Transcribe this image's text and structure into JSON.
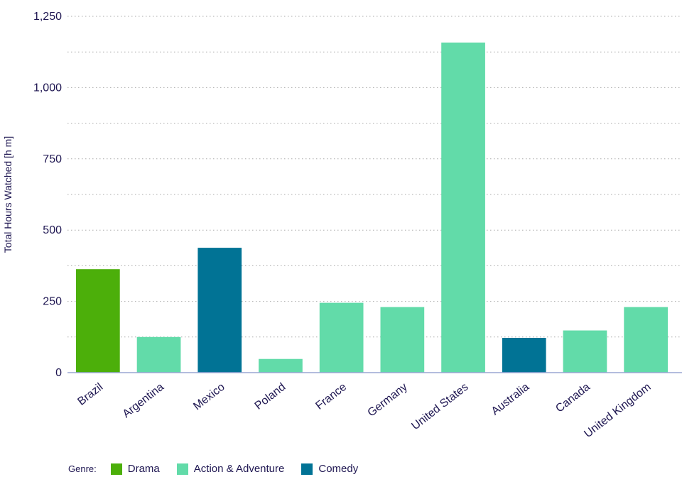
{
  "chart_data": {
    "type": "bar",
    "title": "",
    "ylabel": "Total Hours Watched [h m]",
    "xlabel": "",
    "ylim": [
      0,
      1250
    ],
    "yticks": [
      0,
      250,
      500,
      750,
      1000,
      1250
    ],
    "ytick_labels": [
      "0",
      "250",
      "500",
      "750",
      "1,000",
      "1,250"
    ],
    "grid": true,
    "categories": [
      "Brazil",
      "Argentina",
      "Mexico",
      "Poland",
      "France",
      "Germany",
      "United States",
      "Australia",
      "Canada",
      "United Kingdom"
    ],
    "values": [
      363,
      125,
      438,
      48,
      245,
      230,
      1158,
      122,
      148,
      230
    ],
    "genres": [
      "Drama",
      "Action & Adventure",
      "Comedy",
      "Action & Adventure",
      "Action & Adventure",
      "Action & Adventure",
      "Action & Adventure",
      "Comedy",
      "Action & Adventure",
      "Action & Adventure"
    ],
    "legend": {
      "title": "Genre:",
      "placement": "bottom-left",
      "entries": [
        {
          "name": "Drama",
          "color": "#4caf0a"
        },
        {
          "name": "Action & Adventure",
          "color": "#62dba9"
        },
        {
          "name": "Comedy",
          "color": "#017395"
        }
      ]
    },
    "colors": {
      "axis": "#9aa6d3",
      "grid": "#a9a9a9",
      "text": "#1f1752"
    }
  }
}
